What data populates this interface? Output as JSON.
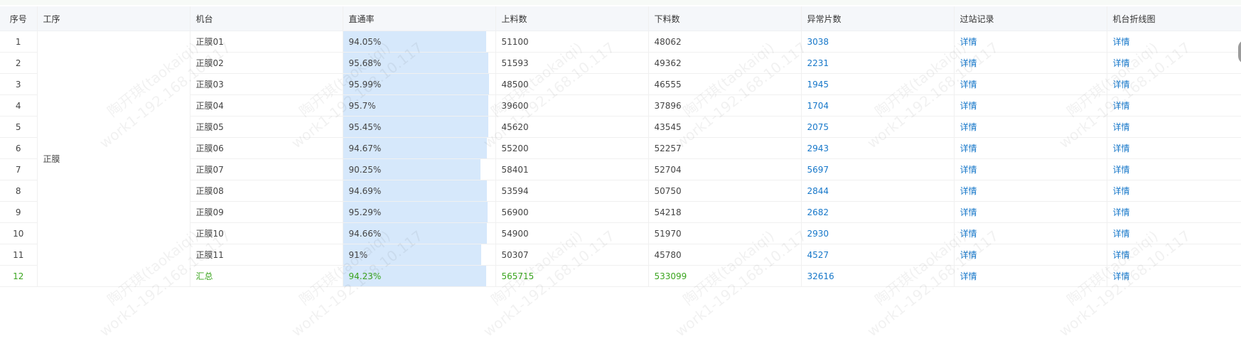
{
  "columns": {
    "index": "序号",
    "process": "工序",
    "machine": "机台",
    "yield_rate": "直通率",
    "input_count": "上料数",
    "output_count": "下料数",
    "abnormal_count": "异常片数",
    "station_record": "过站记录",
    "machine_chart": "机台折线图"
  },
  "process_name": "正膜",
  "rows": [
    {
      "index": "1",
      "machine": "正膜01",
      "yield_rate": "94.05%",
      "yield_value": 94.05,
      "input": "51100",
      "output": "48062",
      "abnormal": "3038",
      "record": "详情",
      "chart": "详情"
    },
    {
      "index": "2",
      "machine": "正膜02",
      "yield_rate": "95.68%",
      "yield_value": 95.68,
      "input": "51593",
      "output": "49362",
      "abnormal": "2231",
      "record": "详情",
      "chart": "详情"
    },
    {
      "index": "3",
      "machine": "正膜03",
      "yield_rate": "95.99%",
      "yield_value": 95.99,
      "input": "48500",
      "output": "46555",
      "abnormal": "1945",
      "record": "详情",
      "chart": "详情"
    },
    {
      "index": "4",
      "machine": "正膜04",
      "yield_rate": "95.7%",
      "yield_value": 95.7,
      "input": "39600",
      "output": "37896",
      "abnormal": "1704",
      "record": "详情",
      "chart": "详情"
    },
    {
      "index": "5",
      "machine": "正膜05",
      "yield_rate": "95.45%",
      "yield_value": 95.45,
      "input": "45620",
      "output": "43545",
      "abnormal": "2075",
      "record": "详情",
      "chart": "详情"
    },
    {
      "index": "6",
      "machine": "正膜06",
      "yield_rate": "94.67%",
      "yield_value": 94.67,
      "input": "55200",
      "output": "52257",
      "abnormal": "2943",
      "record": "详情",
      "chart": "详情"
    },
    {
      "index": "7",
      "machine": "正膜07",
      "yield_rate": "90.25%",
      "yield_value": 90.25,
      "input": "58401",
      "output": "52704",
      "abnormal": "5697",
      "record": "详情",
      "chart": "详情"
    },
    {
      "index": "8",
      "machine": "正膜08",
      "yield_rate": "94.69%",
      "yield_value": 94.69,
      "input": "53594",
      "output": "50750",
      "abnormal": "2844",
      "record": "详情",
      "chart": "详情"
    },
    {
      "index": "9",
      "machine": "正膜09",
      "yield_rate": "95.29%",
      "yield_value": 95.29,
      "input": "56900",
      "output": "54218",
      "abnormal": "2682",
      "record": "详情",
      "chart": "详情"
    },
    {
      "index": "10",
      "machine": "正膜10",
      "yield_rate": "94.66%",
      "yield_value": 94.66,
      "input": "54900",
      "output": "51970",
      "abnormal": "2930",
      "record": "详情",
      "chart": "详情"
    },
    {
      "index": "11",
      "machine": "正膜11",
      "yield_rate": "91%",
      "yield_value": 91,
      "input": "50307",
      "output": "45780",
      "abnormal": "4527",
      "record": "详情",
      "chart": "详情"
    },
    {
      "index": "12",
      "machine": "汇总",
      "yield_rate": "94.23%",
      "yield_value": 94.23,
      "input": "565715",
      "output": "533099",
      "abnormal": "32616",
      "record": "详情",
      "chart": "详情",
      "is_summary": true
    }
  ],
  "watermark": {
    "line1": "陶开琪(taokaiqi)",
    "line2": "work1-192.168.10.117"
  },
  "colors": {
    "header_bg": "#f5f7fa",
    "bar": "#d6e8fb",
    "link": "#1677c9",
    "summary": "#3aa51e"
  }
}
